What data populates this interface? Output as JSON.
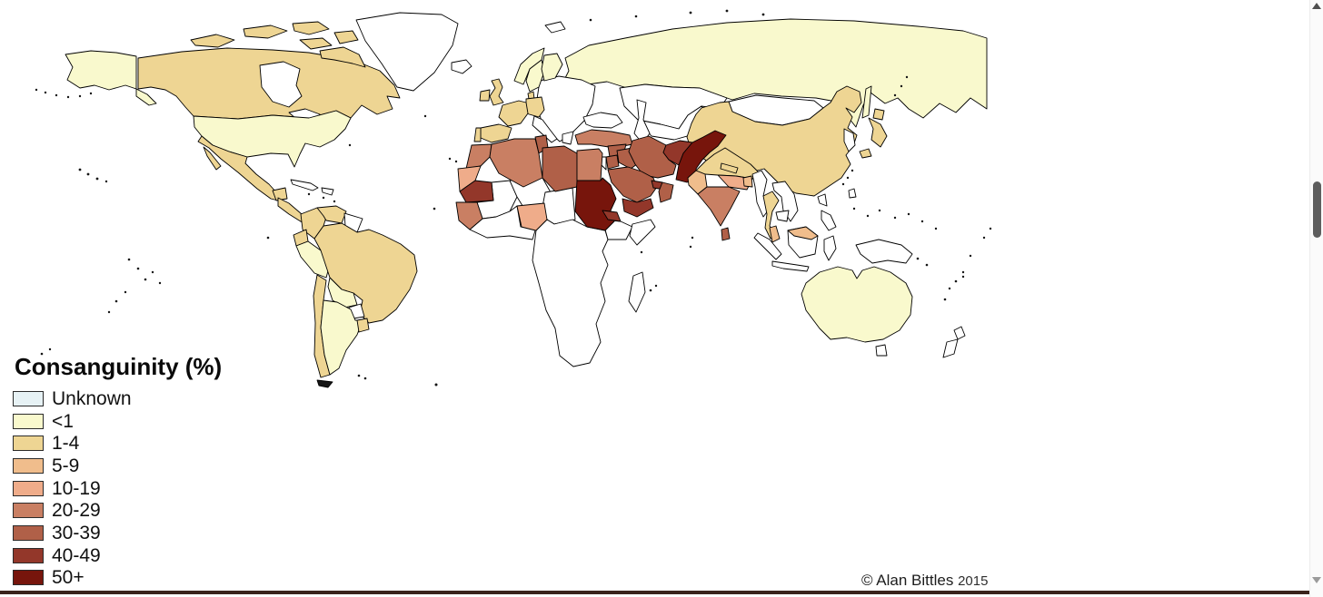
{
  "legend": {
    "title": "Consanguinity (%)",
    "items": [
      {
        "label": "Unknown",
        "color": "#e7f2f5"
      },
      {
        "label": "<1",
        "color": "#f9f9cd"
      },
      {
        "label": "1-4",
        "color": "#eed593"
      },
      {
        "label": "5-9",
        "color": "#f0bd8c"
      },
      {
        "label": "10-19",
        "color": "#efac8a"
      },
      {
        "label": "20-29",
        "color": "#c97f63"
      },
      {
        "label": "30-39",
        "color": "#b06048"
      },
      {
        "label": "40-49",
        "color": "#93372a"
      },
      {
        "label": "50+",
        "color": "#77150c"
      }
    ]
  },
  "attribution": {
    "text": "© Alan Bittles",
    "year": "2015"
  },
  "chrome": {
    "bottom_bar_color": "#3a241c",
    "ocean_color": "#ffffff",
    "outline_color": "#000000"
  },
  "map": {
    "palette": {
      "Unknown": "#ffffff",
      "<1": "#f9f9cd",
      "1-4": "#eed593",
      "5-9": "#f0bd8c",
      "10-19": "#efac8a",
      "20-29": "#c97f63",
      "30-39": "#b06048",
      "40-49": "#93372a",
      "50+": "#77150c"
    },
    "countries": {
      "greenland": "Unknown",
      "iceland": "Unknown",
      "svalbard": "Unknown",
      "hudson-bay": "Unknown",
      "great-lakes": "Unknown",
      "cuba": "Unknown",
      "hispaniola": "Unknown",
      "guyanas": "Unknown",
      "paraguay": "Unknown",
      "central-europe": "Unknown",
      "italy": "Unknown",
      "greece": "Unknown",
      "black-sea": "Unknown",
      "caspian-sea": "Unknown",
      "israel": "Unknown",
      "kazakhstan": "Unknown",
      "turkmenistan-uzbekistan": "Unknown",
      "mongolia": "Unknown",
      "korea": "Unknown",
      "taiwan": "Unknown",
      "myanmar": "Unknown",
      "vietnam-laos": "Unknown",
      "cambodia": "Unknown",
      "sumatra": "Unknown",
      "java": "Unknown",
      "borneo": "Unknown",
      "sulawesi": "Unknown",
      "philippines-north": "Unknown",
      "philippines-south": "Unknown",
      "new-guinea": "Unknown",
      "tasmania": "Unknown",
      "new-zealand-north": "Unknown",
      "new-zealand-south": "Unknown",
      "mali": "Unknown",
      "niger": "Unknown",
      "chad": "Unknown",
      "west-africa": "Unknown",
      "central-southern-africa": "Unknown",
      "ethiopia": "Unknown",
      "somalia": "Unknown",
      "madagascar": "Unknown",
      "alaska": "<1",
      "alaska-panhandle": "<1",
      "usa": "<1",
      "norway": "<1",
      "sweden": "<1",
      "finland": "<1",
      "russia": "<1",
      "sakhalin": "<1",
      "peru": "<1",
      "bolivia": "<1",
      "argentina": "<1",
      "australia": "<1",
      "canada": "1-4",
      "arctic-island-1": "1-4",
      "arctic-island-2": "1-4",
      "arctic-island-3": "1-4",
      "arctic-island-4": "1-4",
      "arctic-island-5": "1-4",
      "baffin-island": "1-4",
      "mexico": "1-4",
      "baja-california": "1-4",
      "yucatan": "1-4",
      "central-america": "1-4",
      "colombia": "1-4",
      "venezuela": "1-4",
      "ecuador": "1-4",
      "brazil": "1-4",
      "chile": "1-4",
      "uruguay": "1-4",
      "ireland": "1-4",
      "uk": "1-4",
      "france": "1-4",
      "spain": "1-4",
      "portugal": "1-4",
      "germany": "1-4",
      "denmark": "1-4",
      "china": "1-4",
      "japan-hokkaido": "1-4",
      "japan-honshu": "1-4",
      "japan-kyushu": "1-4",
      "india-north": "1-4",
      "nepal": "1-4",
      "thailand": "1-4",
      "india-west": "5-9",
      "bangladesh": "5-9",
      "malaysia-peninsula": "5-9",
      "malaysia-borneo": "5-9",
      "western-sahara": "10-19",
      "nigeria": "10-19",
      "india-east": "10-19",
      "morocco": "20-29",
      "algeria": "20-29",
      "egypt": "20-29",
      "turkey": "20-29",
      "guinea-senegal": "20-29",
      "india-south": "20-29",
      "tunisia": "30-39",
      "libya": "30-39",
      "syria": "30-39",
      "iraq": "30-39",
      "iran": "30-39",
      "jordan": "30-39",
      "saudi-arabia": "30-39",
      "oman": "30-39",
      "sri-lanka": "30-39",
      "mauritania": "40-49",
      "afghanistan": "40-49",
      "yemen": "40-49",
      "qatar-uae": "40-49",
      "eritrea-djibouti": "40-49",
      "sudan": "50+",
      "pakistan": "50+"
    }
  }
}
